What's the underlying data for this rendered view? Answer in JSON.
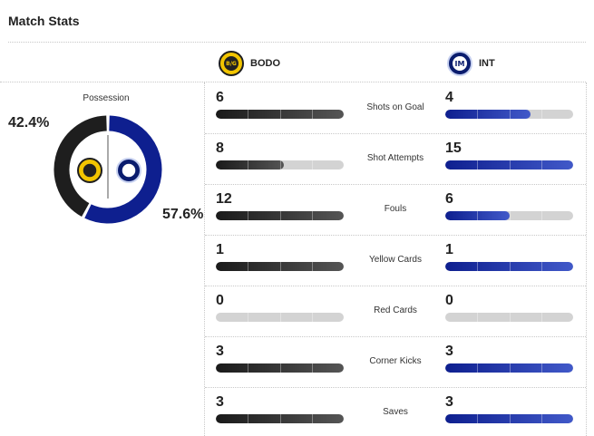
{
  "title": "Match Stats",
  "teams": {
    "bodo": {
      "name": "BODO",
      "logo_text": "B/G",
      "color": "#1e1e1e"
    },
    "int": {
      "name": "INT",
      "logo_text": "IM",
      "color": "#0e1f8f"
    }
  },
  "possession": {
    "label": "Possession",
    "bodo_value": 42.4,
    "int_value": 57.6,
    "bodo_text": "42.4%",
    "int_text": "57.6%"
  },
  "stats": [
    {
      "label": "Shots on Goal",
      "bodo": "6",
      "int": "4",
      "bodo_fill": 1.0,
      "int_fill": 0.667
    },
    {
      "label": "Shot Attempts",
      "bodo": "8",
      "int": "15",
      "bodo_fill": 0.533,
      "int_fill": 1.0
    },
    {
      "label": "Fouls",
      "bodo": "12",
      "int": "6",
      "bodo_fill": 1.0,
      "int_fill": 0.5
    },
    {
      "label": "Yellow Cards",
      "bodo": "1",
      "int": "1",
      "bodo_fill": 1.0,
      "int_fill": 1.0
    },
    {
      "label": "Red Cards",
      "bodo": "0",
      "int": "0",
      "bodo_fill": 0.0,
      "int_fill": 0.0
    },
    {
      "label": "Corner Kicks",
      "bodo": "3",
      "int": "3",
      "bodo_fill": 1.0,
      "int_fill": 1.0
    },
    {
      "label": "Saves",
      "bodo": "3",
      "int": "3",
      "bodo_fill": 1.0,
      "int_fill": 1.0
    }
  ]
}
